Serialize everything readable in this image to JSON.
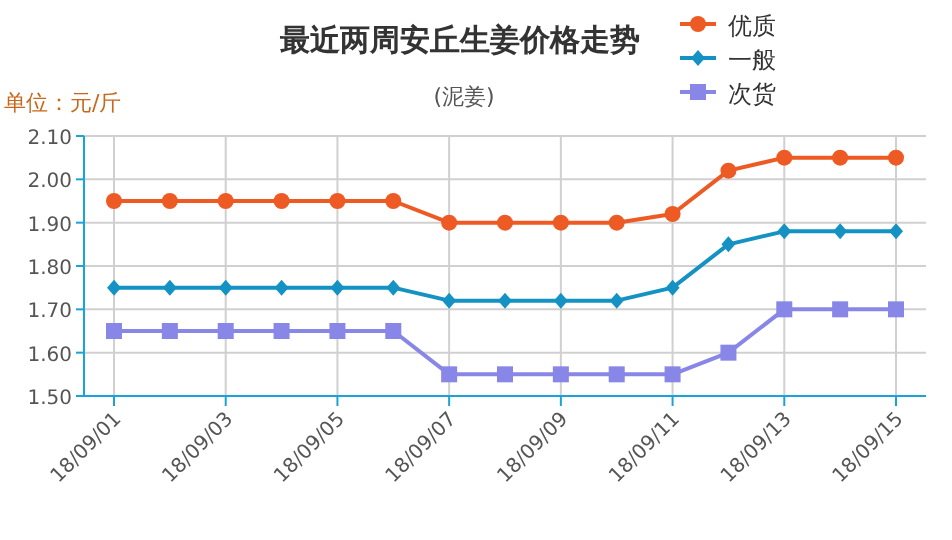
{
  "chart_data": {
    "type": "line",
    "title": "最近两周安丘生姜价格走势",
    "subtitle": "(泥姜)",
    "ylabel": "单位：元/斤",
    "categories": [
      "18/09/01",
      null,
      "18/09/03",
      null,
      "18/09/05",
      null,
      "18/09/07",
      null,
      "18/09/09",
      null,
      "18/09/11",
      null,
      "18/09/13",
      null,
      "18/09/15"
    ],
    "series": [
      {
        "name": "优质",
        "color": "#ee5a24",
        "marker": "circle",
        "values": [
          1.95,
          1.95,
          1.95,
          1.95,
          1.95,
          1.95,
          1.9,
          1.9,
          1.9,
          1.9,
          1.92,
          2.02,
          2.05,
          2.05,
          2.05
        ]
      },
      {
        "name": "一般",
        "color": "#1592c4",
        "marker": "diamond",
        "values": [
          1.75,
          1.75,
          1.75,
          1.75,
          1.75,
          1.75,
          1.72,
          1.72,
          1.72,
          1.72,
          1.75,
          1.85,
          1.88,
          1.88,
          1.88
        ]
      },
      {
        "name": "次货",
        "color": "#8886e6",
        "marker": "square",
        "values": [
          1.65,
          1.65,
          1.65,
          1.65,
          1.65,
          1.65,
          1.55,
          1.55,
          1.55,
          1.55,
          1.55,
          1.6,
          1.7,
          1.7,
          1.7
        ]
      }
    ],
    "ylim": [
      1.5,
      2.1
    ],
    "yticks": [
      {
        "value": 1.5,
        "label": "1.50"
      },
      {
        "value": 1.6,
        "label": "1.60"
      },
      {
        "value": 1.7,
        "label": "1.70"
      },
      {
        "value": 1.8,
        "label": "1.80"
      },
      {
        "value": 1.9,
        "label": "1.90"
      },
      {
        "value": 2.0,
        "label": "2.00"
      },
      {
        "value": 2.1,
        "label": "2.10"
      }
    ],
    "grid": true,
    "legend": "top right",
    "line_style": "solid"
  }
}
